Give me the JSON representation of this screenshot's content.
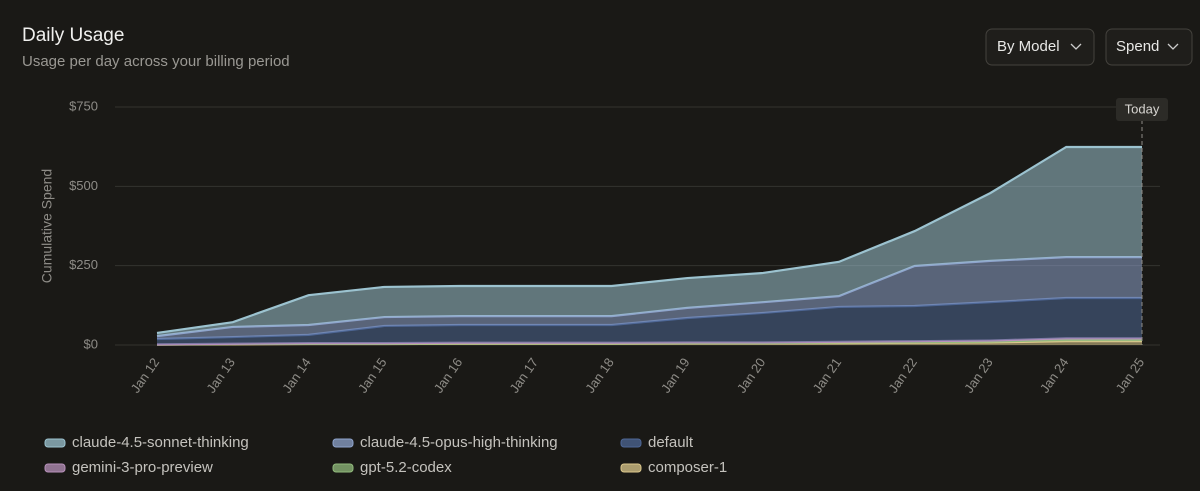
{
  "chart_data": {
    "type": "stacked_area",
    "title": "Daily Usage",
    "subtitle": "Usage per day across your billing period",
    "controls": [
      "By Model",
      "Spend"
    ],
    "y_label": "Cumulative Spend",
    "annotation": "Today",
    "categories": [
      "Jan 12",
      "Jan 13",
      "Jan 14",
      "Jan 15",
      "Jan 16",
      "Jan 17",
      "Jan 18",
      "Jan 19",
      "Jan 20",
      "Jan 21",
      "Jan 22",
      "Jan 23",
      "Jan 24",
      "Jan 25"
    ],
    "series": [
      {
        "name": "claude-4.5-sonnet-thinking",
        "color": "#9cc3d0",
        "values": [
          10,
          15,
          94,
          95,
          95,
          95,
          95,
          94,
          92,
          108,
          110,
          214,
          347,
          347
        ]
      },
      {
        "name": "claude-4.5-opus-high-thinking",
        "color": "#8ea3cc",
        "values": [
          9,
          32,
          31,
          28,
          28,
          28,
          28,
          32,
          34,
          34,
          126,
          130,
          129,
          129
        ]
      },
      {
        "name": "default",
        "color": "#4e6796",
        "values": [
          17,
          21,
          26,
          54,
          56,
          56,
          56,
          77,
          93,
          110,
          111,
          121,
          127,
          127
        ]
      },
      {
        "name": "gemini-3-pro-preview",
        "color": "#b891bb",
        "values": [
          1,
          1,
          2,
          2,
          2,
          2,
          2,
          2,
          2,
          2,
          3,
          3,
          4,
          4
        ]
      },
      {
        "name": "gpt-5.2-codex",
        "color": "#92bb7c",
        "values": [
          0,
          1,
          1,
          1,
          1,
          1,
          1,
          1,
          1,
          2,
          2,
          3,
          5,
          5
        ]
      },
      {
        "name": "composer-1",
        "color": "#dcc88c",
        "values": [
          1,
          2,
          3,
          3,
          4,
          4,
          4,
          5,
          5,
          6,
          7,
          8,
          12,
          12
        ]
      }
    ],
    "ylim": [
      0,
      750
    ],
    "yticks": [
      {
        "value": 0,
        "label": "$0"
      },
      {
        "value": 250,
        "label": "$250"
      },
      {
        "value": 500,
        "label": "$500"
      },
      {
        "value": 750,
        "label": "$750"
      }
    ],
    "grid": true
  }
}
